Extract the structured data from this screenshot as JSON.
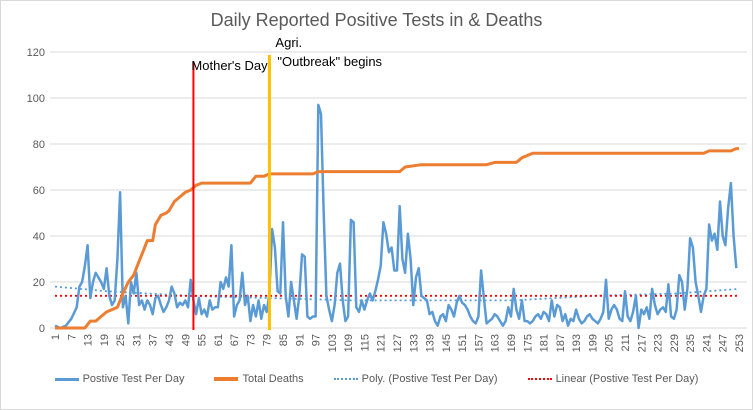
{
  "chart_data": {
    "type": "line",
    "title": "Daily Reported Positive Tests in & Deaths",
    "xlabel": "",
    "ylabel": "",
    "ylim": [
      0,
      120
    ],
    "yticks": [
      0,
      20,
      40,
      60,
      80,
      100,
      120
    ],
    "xlim": [
      1,
      253
    ],
    "xticks": [
      1,
      7,
      13,
      19,
      25,
      31,
      37,
      43,
      49,
      55,
      61,
      67,
      73,
      79,
      85,
      91,
      97,
      103,
      109,
      115,
      121,
      127,
      133,
      139,
      145,
      151,
      157,
      163,
      169,
      175,
      181,
      187,
      193,
      199,
      205,
      211,
      217,
      223,
      229,
      235,
      241,
      247,
      253
    ],
    "grid": true,
    "legend_position": "bottom",
    "colors": {
      "positive": "#5b9bd5",
      "deaths": "#ed7d31",
      "poly": "#5b9bd5",
      "linear": "#ff0000",
      "mothers_day": "#ff0000",
      "outbreak": "#ffc000"
    },
    "annotations": [
      {
        "label": "Mother's Day",
        "x": 52,
        "color": "#ff0000"
      },
      {
        "label_line1": "Agri.",
        "label_line2": "\"Outbreak\" begins",
        "x": 80,
        "color": "#ffc000"
      }
    ],
    "series": [
      {
        "name": "Postive Test Per Day",
        "style": "solid",
        "points": [
          [
            1,
            1
          ],
          [
            3,
            0
          ],
          [
            5,
            1
          ],
          [
            7,
            4
          ],
          [
            9,
            9
          ],
          [
            10,
            18
          ],
          [
            11,
            20
          ],
          [
            12,
            27
          ],
          [
            13,
            36
          ],
          [
            14,
            13
          ],
          [
            15,
            20
          ],
          [
            16,
            24
          ],
          [
            17,
            22
          ],
          [
            18,
            20
          ],
          [
            19,
            17
          ],
          [
            20,
            26
          ],
          [
            21,
            14
          ],
          [
            22,
            10
          ],
          [
            23,
            12
          ],
          [
            24,
            30
          ],
          [
            25,
            59
          ],
          [
            26,
            9
          ],
          [
            27,
            14
          ],
          [
            28,
            2
          ],
          [
            29,
            20
          ],
          [
            30,
            15
          ],
          [
            31,
            24
          ],
          [
            32,
            10
          ],
          [
            33,
            12
          ],
          [
            34,
            8
          ],
          [
            35,
            12
          ],
          [
            36,
            10
          ],
          [
            37,
            6
          ],
          [
            38,
            13
          ],
          [
            39,
            14
          ],
          [
            40,
            10
          ],
          [
            41,
            7
          ],
          [
            42,
            9
          ],
          [
            43,
            12
          ],
          [
            44,
            18
          ],
          [
            45,
            15
          ],
          [
            46,
            9
          ],
          [
            47,
            11
          ],
          [
            48,
            10
          ],
          [
            49,
            12
          ],
          [
            50,
            9
          ],
          [
            51,
            21
          ],
          [
            52,
            12
          ],
          [
            53,
            6
          ],
          [
            54,
            13
          ],
          [
            55,
            6
          ],
          [
            56,
            8
          ],
          [
            57,
            5
          ],
          [
            58,
            12
          ],
          [
            59,
            8
          ],
          [
            60,
            9
          ],
          [
            61,
            9
          ],
          [
            62,
            20
          ],
          [
            63,
            17
          ],
          [
            64,
            22
          ],
          [
            65,
            18
          ],
          [
            66,
            36
          ],
          [
            67,
            5
          ],
          [
            68,
            10
          ],
          [
            69,
            12
          ],
          [
            70,
            24
          ],
          [
            71,
            10
          ],
          [
            72,
            14
          ],
          [
            73,
            3
          ],
          [
            74,
            10
          ],
          [
            75,
            5
          ],
          [
            76,
            12
          ],
          [
            77,
            4
          ],
          [
            78,
            10
          ],
          [
            79,
            7
          ],
          [
            80,
            15
          ],
          [
            81,
            43
          ],
          [
            82,
            35
          ],
          [
            83,
            16
          ],
          [
            84,
            15
          ],
          [
            85,
            46
          ],
          [
            86,
            14
          ],
          [
            87,
            5
          ],
          [
            88,
            20
          ],
          [
            89,
            12
          ],
          [
            90,
            4
          ],
          [
            91,
            14
          ],
          [
            92,
            32
          ],
          [
            93,
            31
          ],
          [
            94,
            5
          ],
          [
            95,
            4
          ],
          [
            96,
            5
          ],
          [
            97,
            5
          ],
          [
            98,
            97
          ],
          [
            99,
            93
          ],
          [
            100,
            50
          ],
          [
            101,
            14
          ],
          [
            102,
            8
          ],
          [
            103,
            3
          ],
          [
            104,
            10
          ],
          [
            105,
            24
          ],
          [
            106,
            28
          ],
          [
            107,
            12
          ],
          [
            108,
            3
          ],
          [
            109,
            5
          ],
          [
            110,
            47
          ],
          [
            111,
            46
          ],
          [
            112,
            9
          ],
          [
            113,
            7
          ],
          [
            114,
            12
          ],
          [
            115,
            8
          ],
          [
            116,
            12
          ],
          [
            117,
            15
          ],
          [
            118,
            12
          ],
          [
            119,
            16
          ],
          [
            120,
            21
          ],
          [
            121,
            27
          ],
          [
            122,
            46
          ],
          [
            123,
            41
          ],
          [
            124,
            33
          ],
          [
            125,
            35
          ],
          [
            126,
            25
          ],
          [
            127,
            25
          ],
          [
            128,
            53
          ],
          [
            129,
            30
          ],
          [
            130,
            24
          ],
          [
            131,
            41
          ],
          [
            132,
            30
          ],
          [
            133,
            10
          ],
          [
            134,
            22
          ],
          [
            135,
            26
          ],
          [
            136,
            14
          ],
          [
            137,
            13
          ],
          [
            138,
            12
          ],
          [
            139,
            6
          ],
          [
            140,
            7
          ],
          [
            141,
            3
          ],
          [
            142,
            1
          ],
          [
            143,
            5
          ],
          [
            144,
            6
          ],
          [
            145,
            3
          ],
          [
            146,
            10
          ],
          [
            147,
            8
          ],
          [
            148,
            5
          ],
          [
            149,
            11
          ],
          [
            150,
            14
          ],
          [
            151,
            11
          ],
          [
            152,
            10
          ],
          [
            153,
            8
          ],
          [
            154,
            5
          ],
          [
            155,
            3
          ],
          [
            156,
            2
          ],
          [
            157,
            5
          ],
          [
            158,
            25
          ],
          [
            159,
            13
          ],
          [
            160,
            2
          ],
          [
            161,
            3
          ],
          [
            162,
            4
          ],
          [
            163,
            6
          ],
          [
            164,
            5
          ],
          [
            165,
            3
          ],
          [
            166,
            1
          ],
          [
            167,
            3
          ],
          [
            168,
            9
          ],
          [
            169,
            5
          ],
          [
            170,
            17
          ],
          [
            171,
            8
          ],
          [
            172,
            4
          ],
          [
            173,
            12
          ],
          [
            174,
            3
          ],
          [
            175,
            3
          ],
          [
            176,
            2
          ],
          [
            177,
            3
          ],
          [
            178,
            5
          ],
          [
            179,
            6
          ],
          [
            180,
            4
          ],
          [
            181,
            7
          ],
          [
            182,
            6
          ],
          [
            183,
            3
          ],
          [
            184,
            12
          ],
          [
            185,
            5
          ],
          [
            186,
            10
          ],
          [
            187,
            9
          ],
          [
            188,
            3
          ],
          [
            189,
            6
          ],
          [
            190,
            1
          ],
          [
            191,
            4
          ],
          [
            192,
            3
          ],
          [
            193,
            8
          ],
          [
            194,
            4
          ],
          [
            195,
            2
          ],
          [
            196,
            3
          ],
          [
            197,
            5
          ],
          [
            198,
            6
          ],
          [
            199,
            4
          ],
          [
            200,
            3
          ],
          [
            201,
            2
          ],
          [
            202,
            4
          ],
          [
            203,
            7
          ],
          [
            204,
            21
          ],
          [
            205,
            4
          ],
          [
            206,
            8
          ],
          [
            207,
            10
          ],
          [
            208,
            8
          ],
          [
            209,
            4
          ],
          [
            210,
            3
          ],
          [
            211,
            16
          ],
          [
            212,
            5
          ],
          [
            213,
            3
          ],
          [
            214,
            7
          ],
          [
            215,
            14
          ],
          [
            216,
            0
          ],
          [
            217,
            8
          ],
          [
            218,
            6
          ],
          [
            219,
            9
          ],
          [
            220,
            4
          ],
          [
            221,
            17
          ],
          [
            222,
            10
          ],
          [
            223,
            6
          ],
          [
            224,
            8
          ],
          [
            225,
            9
          ],
          [
            226,
            7
          ],
          [
            227,
            19
          ],
          [
            228,
            5
          ],
          [
            229,
            4
          ],
          [
            230,
            8
          ],
          [
            231,
            23
          ],
          [
            232,
            20
          ],
          [
            233,
            8
          ],
          [
            234,
            17
          ],
          [
            235,
            39
          ],
          [
            236,
            35
          ],
          [
            237,
            20
          ],
          [
            238,
            14
          ],
          [
            239,
            7
          ],
          [
            240,
            14
          ],
          [
            241,
            17
          ],
          [
            242,
            45
          ],
          [
            243,
            38
          ],
          [
            244,
            41
          ],
          [
            245,
            34
          ],
          [
            246,
            55
          ],
          [
            247,
            40
          ],
          [
            248,
            36
          ],
          [
            249,
            52
          ],
          [
            250,
            63
          ],
          [
            251,
            40
          ],
          [
            252,
            26
          ]
        ]
      },
      {
        "name": "Total Deaths",
        "style": "solid",
        "points": [
          [
            1,
            0
          ],
          [
            12,
            0
          ],
          [
            14,
            3
          ],
          [
            16,
            3
          ],
          [
            18,
            5
          ],
          [
            20,
            7
          ],
          [
            22,
            8
          ],
          [
            24,
            9
          ],
          [
            26,
            15
          ],
          [
            28,
            20
          ],
          [
            30,
            23
          ],
          [
            32,
            29
          ],
          [
            33,
            32
          ],
          [
            35,
            38
          ],
          [
            37,
            38
          ],
          [
            38,
            45
          ],
          [
            40,
            49
          ],
          [
            42,
            50
          ],
          [
            43,
            51
          ],
          [
            45,
            55
          ],
          [
            47,
            57
          ],
          [
            49,
            59
          ],
          [
            51,
            60
          ],
          [
            53,
            62
          ],
          [
            55,
            63
          ],
          [
            73,
            63
          ],
          [
            75,
            66
          ],
          [
            78,
            66
          ],
          [
            80,
            67
          ],
          [
            96,
            67
          ],
          [
            98,
            68
          ],
          [
            128,
            68
          ],
          [
            130,
            70
          ],
          [
            136,
            71
          ],
          [
            160,
            71
          ],
          [
            163,
            72
          ],
          [
            171,
            72
          ],
          [
            173,
            74
          ],
          [
            175,
            75
          ],
          [
            177,
            76
          ],
          [
            240,
            76
          ],
          [
            242,
            77
          ],
          [
            250,
            77
          ],
          [
            252,
            78
          ],
          [
            253,
            78
          ]
        ]
      },
      {
        "name": "Poly. (Postive Test Per Day)",
        "style": "dotted",
        "points": [
          [
            1,
            18
          ],
          [
            20,
            16
          ],
          [
            50,
            14
          ],
          [
            80,
            13
          ],
          [
            110,
            12
          ],
          [
            140,
            12
          ],
          [
            170,
            12
          ],
          [
            200,
            14
          ],
          [
            230,
            15
          ],
          [
            253,
            17
          ]
        ]
      },
      {
        "name": "Linear (Postive Test Per Day)",
        "style": "dotted",
        "points": [
          [
            1,
            14
          ],
          [
            253,
            14
          ]
        ]
      }
    ]
  }
}
